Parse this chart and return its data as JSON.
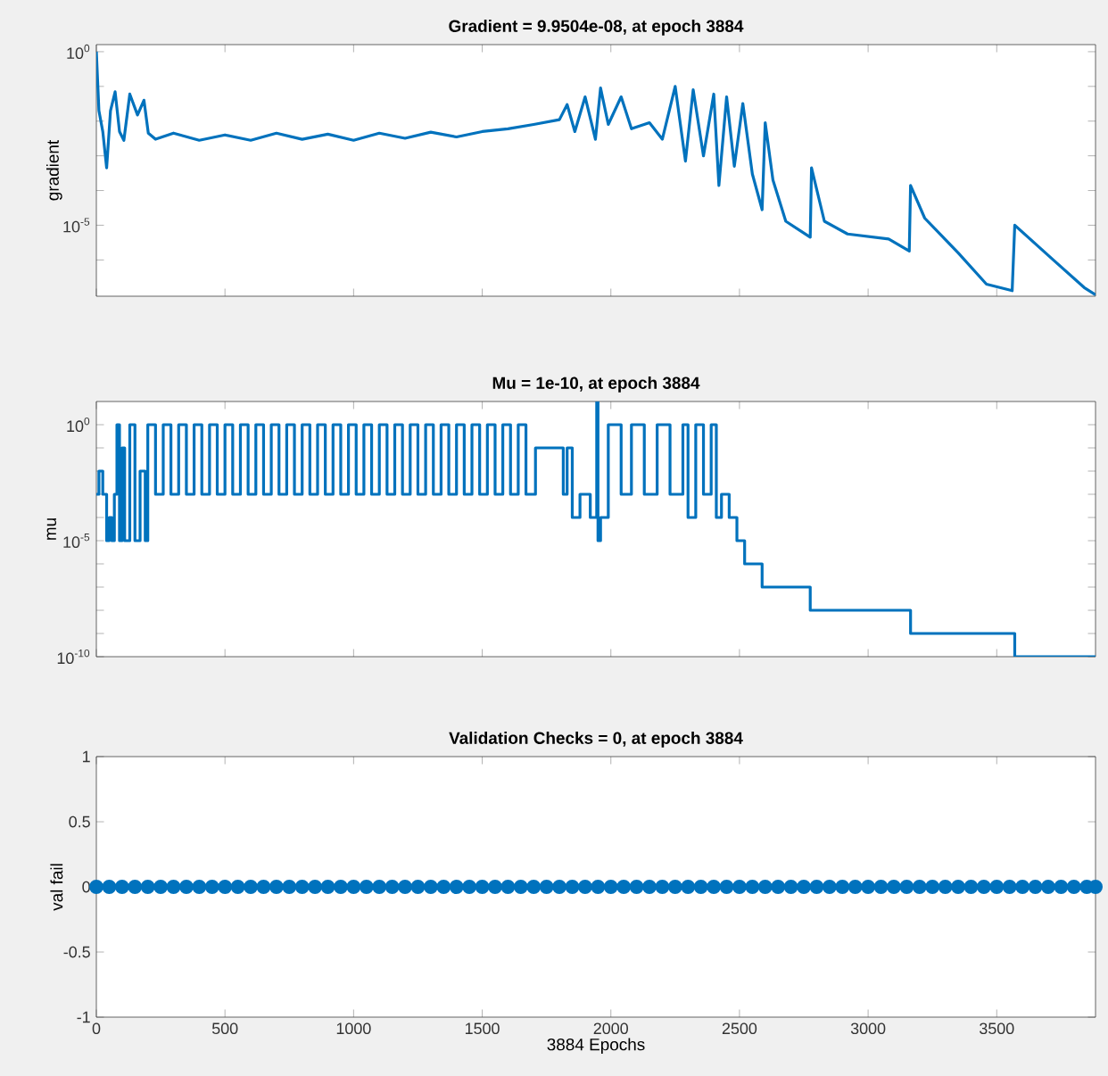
{
  "chart_data": [
    {
      "type": "line",
      "title": "Gradient = 9.9504e-08, at epoch 3884",
      "ylabel": "gradient",
      "log": true,
      "tick_labels": "y",
      "color": "#0072bd",
      "xlim": [
        0,
        3884
      ],
      "ylim": [
        9e-08,
        1.6
      ],
      "xticks": [
        0,
        500,
        1000,
        1500,
        2000,
        2500,
        3000,
        3500
      ],
      "yticks": [
        {
          "value": 1,
          "label": "10$^{0}$"
        },
        {
          "value": 0.1,
          "label": null
        },
        {
          "value": 0.01,
          "label": null
        },
        {
          "value": 0.001,
          "label": null
        },
        {
          "value": 0.0001,
          "label": null
        },
        {
          "value": 1e-05,
          "label": "10$^{-5}$"
        },
        {
          "value": 1e-06,
          "label": null
        }
      ],
      "x": [
        0,
        10,
        25,
        40,
        55,
        73,
        90,
        107,
        130,
        160,
        185,
        202,
        230,
        300,
        400,
        500,
        600,
        700,
        800,
        900,
        1000,
        1100,
        1200,
        1300,
        1400,
        1500,
        1600,
        1700,
        1800,
        1830,
        1860,
        1900,
        1940,
        1960,
        1990,
        2040,
        2080,
        2150,
        2200,
        2250,
        2290,
        2320,
        2360,
        2400,
        2420,
        2450,
        2480,
        2513,
        2550,
        2588,
        2600,
        2630,
        2680,
        2775,
        2780,
        2830,
        2920,
        3080,
        3160,
        3165,
        3220,
        3350,
        3460,
        3560,
        3570,
        3720,
        3840,
        3884
      ],
      "values": [
        1,
        0.02,
        0.005,
        0.00045,
        0.02,
        0.07,
        0.005,
        0.0028,
        0.06,
        0.015,
        0.04,
        0.0045,
        0.003,
        0.0045,
        0.0028,
        0.004,
        0.0028,
        0.0045,
        0.003,
        0.0042,
        0.0028,
        0.0045,
        0.0032,
        0.0048,
        0.0035,
        0.005,
        0.006,
        0.008,
        0.011,
        0.03,
        0.005,
        0.05,
        0.003,
        0.09,
        0.008,
        0.05,
        0.006,
        0.009,
        0.003,
        0.1,
        0.0007,
        0.08,
        0.001,
        0.06,
        0.00014,
        0.05,
        0.0005,
        0.032,
        0.0003,
        2.8e-05,
        0.009,
        0.0002,
        1.3e-05,
        4.5e-06,
        0.00045,
        1.3e-05,
        5.6e-06,
        4e-06,
        1.8e-06,
        0.00014,
        1.6e-05,
        1.6e-06,
        2e-07,
        1.3e-07,
        1e-05,
        1e-06,
        1.6e-07,
        9.9504e-08
      ]
    },
    {
      "type": "step",
      "title": "Mu = 1e-10, at epoch 3884",
      "ylabel": "mu",
      "log": true,
      "tick_labels": "y",
      "color": "#0072bd",
      "xlim": [
        0,
        3884
      ],
      "ylim": [
        1e-10,
        10
      ],
      "xticks": [
        0,
        500,
        1000,
        1500,
        2000,
        2500,
        3000,
        3500
      ],
      "yticks": [
        {
          "value": 1,
          "label": "10$^{0}$"
        },
        {
          "value": 0.1,
          "label": null
        },
        {
          "value": 0.01,
          "label": null
        },
        {
          "value": 0.001,
          "label": null
        },
        {
          "value": 0.0001,
          "label": null
        },
        {
          "value": 1e-05,
          "label": "10$^{-5}$"
        },
        {
          "value": 1e-06,
          "label": null
        },
        {
          "value": 1e-07,
          "label": null
        },
        {
          "value": 1e-08,
          "label": null
        },
        {
          "value": 1e-09,
          "label": null
        },
        {
          "value": 1e-10,
          "label": "10$^{-10}$"
        }
      ],
      "x": [
        0,
        10,
        25,
        40,
        50,
        60,
        70,
        80,
        90,
        100,
        110,
        130,
        150,
        170,
        190,
        200,
        230,
        260,
        290,
        320,
        350,
        380,
        410,
        440,
        470,
        500,
        530,
        560,
        590,
        620,
        650,
        680,
        710,
        740,
        770,
        800,
        830,
        860,
        890,
        920,
        950,
        980,
        1010,
        1040,
        1070,
        1100,
        1130,
        1160,
        1190,
        1220,
        1250,
        1280,
        1310,
        1340,
        1370,
        1400,
        1430,
        1460,
        1490,
        1520,
        1550,
        1580,
        1610,
        1640,
        1670,
        1707,
        1815,
        1830,
        1850,
        1880,
        1920,
        1945,
        1950,
        1960,
        1990,
        2040,
        2080,
        2130,
        2180,
        2230,
        2280,
        2300,
        2330,
        2360,
        2390,
        2410,
        2430,
        2460,
        2490,
        2520,
        2588,
        2775,
        3165,
        3570,
        3884
      ],
      "values": [
        0.001,
        0.01,
        0.001,
        1e-05,
        0.0001,
        1e-05,
        0.001,
        1,
        1e-05,
        0.1,
        1e-05,
        1,
        1e-05,
        0.01,
        1e-05,
        1,
        0.001,
        1,
        0.001,
        1,
        0.001,
        1,
        0.001,
        1,
        0.001,
        1,
        0.001,
        1,
        0.001,
        1,
        0.001,
        1,
        0.001,
        1,
        0.001,
        1,
        0.001,
        1,
        0.001,
        1,
        0.001,
        1,
        0.001,
        1,
        0.001,
        1,
        0.001,
        1,
        0.001,
        1,
        0.001,
        1,
        0.001,
        1,
        0.001,
        1,
        0.001,
        1,
        0.001,
        1,
        0.001,
        1,
        0.001,
        1,
        0.001,
        0.1,
        0.001,
        0.1,
        0.0001,
        0.001,
        0.0001,
        10,
        1e-05,
        0.0001,
        1,
        0.001,
        1,
        0.001,
        1,
        0.001,
        1,
        0.0001,
        1,
        0.001,
        1,
        0.0001,
        0.001,
        0.0001,
        1e-05,
        1e-06,
        1e-07,
        1e-08,
        1e-09,
        1e-10,
        1e-10
      ]
    },
    {
      "type": "scatter",
      "title": "Validation Checks = 0, at epoch 3884",
      "ylabel": "val fail",
      "xlabel": "3884 Epochs",
      "color": "#0072bd",
      "marker": "circle",
      "xlim": [
        0,
        3884
      ],
      "ylim": [
        -1,
        1
      ],
      "xticks": [
        0,
        500,
        1000,
        1500,
        2000,
        2500,
        3000,
        3500
      ],
      "yticks": [
        -1,
        -0.5,
        0,
        0.5,
        1
      ],
      "x": [
        0,
        50,
        100,
        150,
        200,
        250,
        300,
        350,
        400,
        450,
        500,
        550,
        600,
        650,
        700,
        750,
        800,
        850,
        900,
        950,
        1000,
        1050,
        1100,
        1150,
        1200,
        1250,
        1300,
        1350,
        1400,
        1450,
        1500,
        1550,
        1600,
        1650,
        1700,
        1750,
        1800,
        1850,
        1900,
        1950,
        2000,
        2050,
        2100,
        2150,
        2200,
        2250,
        2300,
        2350,
        2400,
        2450,
        2500,
        2550,
        2600,
        2650,
        2700,
        2750,
        2800,
        2850,
        2900,
        2950,
        3000,
        3050,
        3100,
        3150,
        3200,
        3250,
        3300,
        3350,
        3400,
        3450,
        3500,
        3550,
        3600,
        3650,
        3700,
        3750,
        3800,
        3850,
        3884
      ],
      "values": [
        0,
        0,
        0,
        0,
        0,
        0,
        0,
        0,
        0,
        0,
        0,
        0,
        0,
        0,
        0,
        0,
        0,
        0,
        0,
        0,
        0,
        0,
        0,
        0,
        0,
        0,
        0,
        0,
        0,
        0,
        0,
        0,
        0,
        0,
        0,
        0,
        0,
        0,
        0,
        0,
        0,
        0,
        0,
        0,
        0,
        0,
        0,
        0,
        0,
        0,
        0,
        0,
        0,
        0,
        0,
        0,
        0,
        0,
        0,
        0,
        0,
        0,
        0,
        0,
        0,
        0,
        0,
        0,
        0,
        0,
        0,
        0,
        0,
        0,
        0,
        0,
        0,
        0,
        0
      ]
    }
  ]
}
